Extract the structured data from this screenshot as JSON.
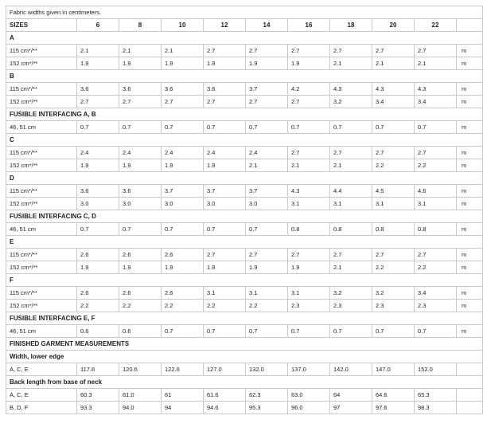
{
  "note": "Fabric widths given in centimeters.",
  "header": {
    "label": "SIZES",
    "sizes": [
      "6",
      "8",
      "10",
      "12",
      "14",
      "16",
      "18",
      "20",
      "22"
    ]
  },
  "rows": [
    {
      "type": "section",
      "label": "A"
    },
    {
      "type": "data",
      "label": "115 cm*/**",
      "values": [
        "2.1",
        "2.1",
        "2.1",
        "2.7",
        "2.7",
        "2.7",
        "2.7",
        "2.7",
        "2.7"
      ],
      "unit": "m"
    },
    {
      "type": "data",
      "label": "152 cm*/**",
      "values": [
        "1.9",
        "1.9",
        "1.9",
        "1.9",
        "1.9",
        "1.9",
        "2.1",
        "2.1",
        "2.1"
      ],
      "unit": "m"
    },
    {
      "type": "section",
      "label": "B"
    },
    {
      "type": "data",
      "label": "115 cm*/**",
      "values": [
        "3.6",
        "3.6",
        "3.6",
        "3.6",
        "3.7",
        "4.2",
        "4.3",
        "4.3",
        "4.3"
      ],
      "unit": "m"
    },
    {
      "type": "data",
      "label": "152 cm*/**",
      "values": [
        "2.7",
        "2.7",
        "2.7",
        "2.7",
        "2.7",
        "2.7",
        "3.2",
        "3.4",
        "3.4"
      ],
      "unit": "m"
    },
    {
      "type": "section",
      "label": "FUSIBLE INTERFACING A, B"
    },
    {
      "type": "data",
      "label": "46, 51 cm",
      "values": [
        "0.7",
        "0.7",
        "0.7",
        "0.7",
        "0.7",
        "0.7",
        "0.7",
        "0.7",
        "0.7"
      ],
      "unit": "m"
    },
    {
      "type": "section",
      "label": "C"
    },
    {
      "type": "data",
      "label": "115 cm*/**",
      "values": [
        "2.4",
        "2.4",
        "2.4",
        "2.4",
        "2.4",
        "2.7",
        "2.7",
        "2.7",
        "2.7"
      ],
      "unit": "m"
    },
    {
      "type": "data",
      "label": "152 cm*/**",
      "values": [
        "1.9",
        "1.9",
        "1.9",
        "1.9",
        "2.1",
        "2.1",
        "2.1",
        "2.2",
        "2.2"
      ],
      "unit": "m"
    },
    {
      "type": "section",
      "label": "D"
    },
    {
      "type": "data",
      "label": "115 cm*/**",
      "values": [
        "3.6",
        "3.6",
        "3.7",
        "3.7",
        "3.7",
        "4.3",
        "4.4",
        "4.5",
        "4.6"
      ],
      "unit": "m"
    },
    {
      "type": "data",
      "label": "152 cm*/**",
      "values": [
        "3.0",
        "3.0",
        "3.0",
        "3.0",
        "3.0",
        "3.1",
        "3.1",
        "3.1",
        "3.1"
      ],
      "unit": "m"
    },
    {
      "type": "section",
      "label": "FUSIBLE INTERFACING C, D"
    },
    {
      "type": "data",
      "label": "46, 51 cm",
      "values": [
        "0.7",
        "0.7",
        "0.7",
        "0.7",
        "0.7",
        "0.8",
        "0.8",
        "0.8",
        "0.8"
      ],
      "unit": "m"
    },
    {
      "type": "section",
      "label": "E"
    },
    {
      "type": "data",
      "label": "115 cm*/**",
      "values": [
        "2.6",
        "2.6",
        "2.6",
        "2.7",
        "2.7",
        "2.7",
        "2.7",
        "2.7",
        "2.7"
      ],
      "unit": "m"
    },
    {
      "type": "data",
      "label": "152 cm*/**",
      "values": [
        "1.9",
        "1.9",
        "1.9",
        "1.9",
        "1.9",
        "1.9",
        "2.1",
        "2.2",
        "2.2"
      ],
      "unit": "m"
    },
    {
      "type": "section",
      "label": "F"
    },
    {
      "type": "data",
      "label": "115 cm*/**",
      "values": [
        "2.6",
        "2.6",
        "2.6",
        "3.1",
        "3.1",
        "3.1",
        "3.2",
        "3.2",
        "3.4"
      ],
      "unit": "m"
    },
    {
      "type": "data",
      "label": "152 cm*/**",
      "values": [
        "2.2",
        "2.2",
        "2.2",
        "2.2",
        "2.2",
        "2.3",
        "2.3",
        "2.3",
        "2.3"
      ],
      "unit": "m"
    },
    {
      "type": "section",
      "label": "FUSIBLE INTERFACING E, F"
    },
    {
      "type": "data",
      "label": "46, 51 cm",
      "values": [
        "0.6",
        "0.6",
        "0.7",
        "0.7",
        "0.7",
        "0.7",
        "0.7",
        "0.7",
        "0.7"
      ],
      "unit": "m"
    },
    {
      "type": "section",
      "label": "FINISHED GARMENT MEASUREMENTS"
    },
    {
      "type": "section",
      "label": "Width, lower edge"
    },
    {
      "type": "data",
      "label": "A, C, E",
      "values": [
        "117.6",
        "120.6",
        "122.6",
        "127.0",
        "132.0",
        "137.0",
        "142.0",
        "147.0",
        "152.0"
      ],
      "unit": ""
    },
    {
      "type": "section",
      "label": "Back length from base of neck"
    },
    {
      "type": "data",
      "label": "A, C, E",
      "values": [
        "60.3",
        "61.0",
        "61",
        "61.6",
        "62.3",
        "63.0",
        "64",
        "64.6",
        "65.3"
      ],
      "unit": ""
    },
    {
      "type": "data",
      "label": "B, D, F",
      "values": [
        "93.3",
        "94.0",
        "94",
        "94.6",
        "95.3",
        "96.0",
        "97",
        "97.6",
        "98.3"
      ],
      "unit": ""
    }
  ]
}
